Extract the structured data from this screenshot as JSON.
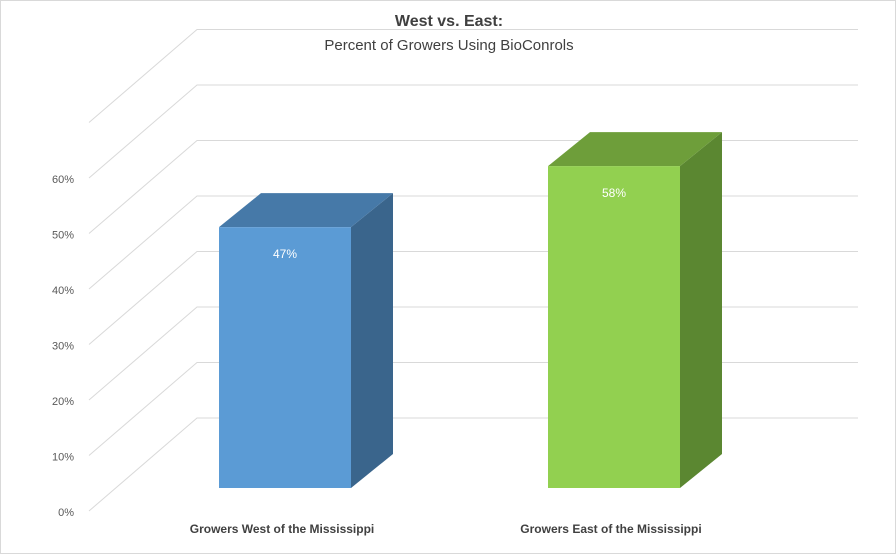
{
  "chart_data": {
    "type": "bar",
    "title": "West vs. East:",
    "subtitle": "Percent of Growers Using BioConrols",
    "categories": [
      "Growers West of the Mississippi",
      "Growers East of the Mississippi"
    ],
    "values": [
      47,
      58
    ],
    "data_labels": [
      "47%",
      "58%"
    ],
    "y_ticks": [
      "0%",
      "10%",
      "20%",
      "30%",
      "40%",
      "50%",
      "60%"
    ],
    "ylim": [
      0,
      60
    ],
    "grid": true,
    "legend": "none",
    "style": "3d-column",
    "colors": {
      "bar_1_front": "#5b9bd5",
      "bar_1_top": "#4679a8",
      "bar_1_side": "#3a658c",
      "bar_2_front": "#92d050",
      "bar_2_top": "#6e9e3a",
      "bar_2_side": "#5b8731"
    }
  }
}
